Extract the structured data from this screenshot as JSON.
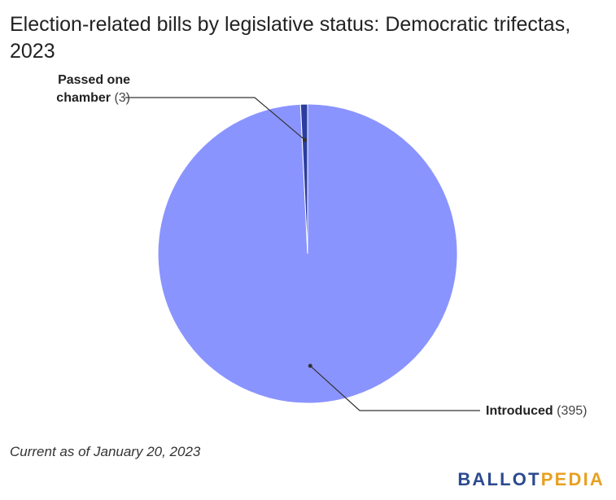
{
  "title": "Election-related bills by legislative status: Democratic trifectas, 2023",
  "footnote": "Current as of January 20, 2023",
  "brand": {
    "part1": "BALLOT",
    "part2": "PEDIA"
  },
  "chart_data": {
    "type": "pie",
    "title": "Election-related bills by legislative status: Democratic trifectas, 2023",
    "slices": [
      {
        "label": "Introduced",
        "label_lines": [
          "Introduced"
        ],
        "value": 395,
        "value_text": "(395)",
        "color": "#8a94ff"
      },
      {
        "label": "Passed one chamber",
        "label_lines": [
          "Passed one",
          "chamber"
        ],
        "value": 3,
        "value_text": "(3)",
        "color": "#2b3d9e"
      }
    ]
  }
}
